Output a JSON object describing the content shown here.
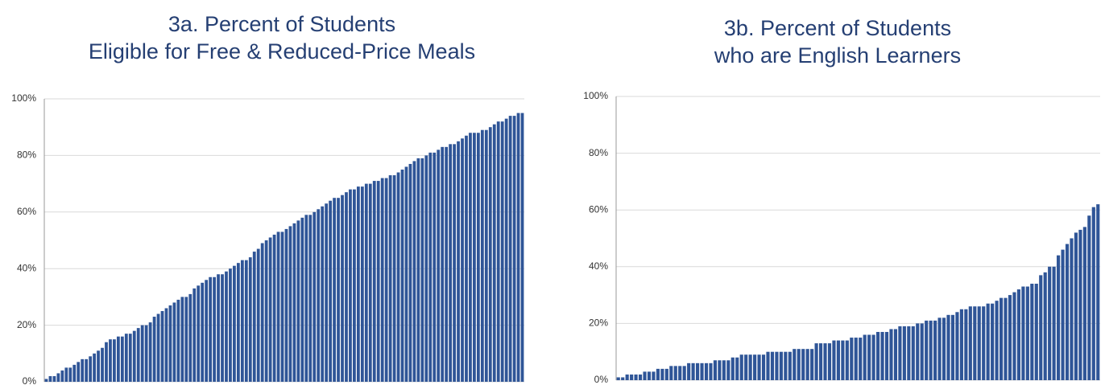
{
  "chart_data": [
    {
      "type": "bar",
      "title": [
        "3a. Percent of Students",
        "Eligible for Free & Reduced-Price Meals"
      ],
      "color": "#2f5597",
      "grid": true,
      "ylim": [
        0,
        100
      ],
      "yticks": [
        {
          "value": 0,
          "label": "0%"
        },
        {
          "value": 20,
          "label": "20%"
        },
        {
          "value": 40,
          "label": "40%"
        },
        {
          "value": 60,
          "label": "60%"
        },
        {
          "value": 80,
          "label": "80%"
        },
        {
          "value": 100,
          "label": "100%"
        }
      ],
      "values": [
        1,
        2,
        2,
        3,
        4,
        5,
        5,
        6,
        7,
        8,
        8,
        9,
        10,
        11,
        12,
        14,
        15,
        15,
        16,
        16,
        17,
        17,
        18,
        19,
        20,
        20,
        21,
        23,
        24,
        25,
        26,
        27,
        28,
        29,
        30,
        30,
        31,
        33,
        34,
        35,
        36,
        37,
        37,
        38,
        38,
        39,
        40,
        41,
        42,
        43,
        43,
        44,
        46,
        47,
        49,
        50,
        51,
        52,
        53,
        53,
        54,
        55,
        56,
        57,
        58,
        59,
        59,
        60,
        61,
        62,
        63,
        64,
        65,
        65,
        66,
        67,
        68,
        68,
        69,
        69,
        70,
        70,
        71,
        71,
        72,
        72,
        73,
        73,
        74,
        75,
        76,
        77,
        78,
        79,
        79,
        80,
        81,
        81,
        82,
        83,
        83,
        84,
        84,
        85,
        86,
        87,
        88,
        88,
        88,
        89,
        89,
        90,
        91,
        92,
        92,
        93,
        94,
        94,
        95,
        95
      ]
    },
    {
      "type": "bar",
      "title": [
        "3b. Percent of Students",
        "who are English Learners"
      ],
      "color": "#2f5597",
      "grid": true,
      "ylim": [
        0,
        100
      ],
      "yticks": [
        {
          "value": 0,
          "label": "0%"
        },
        {
          "value": 20,
          "label": "20%"
        },
        {
          "value": 40,
          "label": "40%"
        },
        {
          "value": 60,
          "label": "60%"
        },
        {
          "value": 80,
          "label": "80%"
        },
        {
          "value": 100,
          "label": "100%"
        }
      ],
      "values": [
        1,
        1,
        2,
        2,
        2,
        2,
        3,
        3,
        3,
        4,
        4,
        4,
        5,
        5,
        5,
        5,
        6,
        6,
        6,
        6,
        6,
        6,
        7,
        7,
        7,
        7,
        8,
        8,
        9,
        9,
        9,
        9,
        9,
        9,
        10,
        10,
        10,
        10,
        10,
        10,
        11,
        11,
        11,
        11,
        11,
        13,
        13,
        13,
        13,
        14,
        14,
        14,
        14,
        15,
        15,
        15,
        16,
        16,
        16,
        17,
        17,
        17,
        18,
        18,
        19,
        19,
        19,
        19,
        20,
        20,
        21,
        21,
        21,
        22,
        22,
        23,
        23,
        24,
        25,
        25,
        26,
        26,
        26,
        26,
        27,
        27,
        28,
        29,
        29,
        30,
        31,
        32,
        33,
        33,
        34,
        34,
        37,
        38,
        40,
        40,
        44,
        46,
        48,
        50,
        52,
        53,
        54,
        58,
        61,
        62
      ]
    }
  ]
}
